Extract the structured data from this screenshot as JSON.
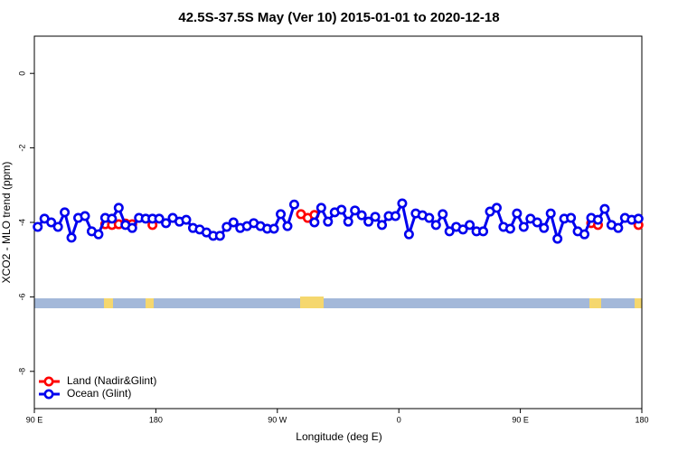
{
  "chart_data": {
    "type": "line",
    "title": "42.5S-37.5S May (Ver 10)   2015-01-01 to 2020-12-18",
    "xlabel": "Longitude (deg E)",
    "ylabel": "XCO2 - MLO trend (ppm)",
    "xlim": [
      90,
      540
    ],
    "ylim": [
      -9,
      1
    ],
    "xticks": [
      {
        "value": 90,
        "label": "90 E"
      },
      180,
      {
        "value": 270,
        "label": "90 W"
      },
      {
        "value": 360,
        "label": "0"
      },
      {
        "value": 450,
        "label": "90 E"
      },
      {
        "value": 540,
        "label": "180"
      }
    ],
    "yticks": [
      0,
      -2,
      -4,
      -6,
      -8
    ],
    "grid": false,
    "legend": "bottom-left",
    "x": [
      92.5,
      97.5,
      102.5,
      107.5,
      112.5,
      117.5,
      122.5,
      127.5,
      132.5,
      137.5,
      142.5,
      147.5,
      152.5,
      157.5,
      162.5,
      167.5,
      172.5,
      177.5,
      182.5,
      187.5,
      192.5,
      197.5,
      202.5,
      207.5,
      212.5,
      217.5,
      222.5,
      227.5,
      232.5,
      237.5,
      242.5,
      247.5,
      252.5,
      257.5,
      262.5,
      267.5,
      272.5,
      277.5,
      282.5,
      287.5,
      292.5,
      297.5,
      302.5,
      307.5,
      312.5,
      317.5,
      322.5,
      327.5,
      332.5,
      337.5,
      342.5,
      347.5,
      352.5,
      357.5,
      362.5,
      367.5,
      372.5,
      377.5,
      382.5,
      387.5,
      392.5,
      397.5,
      402.5,
      407.5,
      412.5,
      417.5,
      422.5,
      427.5,
      432.5,
      437.5,
      442.5,
      447.5,
      452.5,
      457.5,
      462.5,
      467.5,
      472.5,
      477.5,
      482.5,
      487.5,
      492.5,
      497.5,
      502.5,
      507.5,
      512.5,
      517.5,
      522.5,
      527.5,
      532.5,
      537.5
    ],
    "series": [
      {
        "name": "Land (Nadir&Glint)",
        "color": "#ff0000",
        "values": [
          null,
          null,
          null,
          null,
          null,
          null,
          null,
          null,
          null,
          null,
          -4.05,
          -4.07,
          -4.05,
          -4.03,
          -4.05,
          null,
          null,
          -4.07,
          null,
          null,
          null,
          null,
          null,
          null,
          null,
          null,
          null,
          null,
          null,
          null,
          null,
          null,
          null,
          null,
          null,
          null,
          null,
          null,
          null,
          -3.78,
          -3.88,
          -3.8,
          null,
          null,
          null,
          null,
          null,
          null,
          null,
          null,
          null,
          null,
          null,
          null,
          null,
          null,
          null,
          null,
          null,
          null,
          null,
          null,
          null,
          null,
          null,
          null,
          null,
          null,
          null,
          null,
          null,
          null,
          null,
          null,
          null,
          null,
          null,
          null,
          null,
          null,
          null,
          null,
          -4.02,
          -4.07,
          null,
          null,
          null,
          null,
          null,
          -4.07
        ]
      },
      {
        "name": "Ocean (Glint)",
        "color": "#0000ee",
        "values": [
          -4.12,
          -3.9,
          -4.0,
          -4.12,
          -3.73,
          -4.41,
          -3.88,
          -3.83,
          -4.24,
          -4.32,
          -3.88,
          -3.9,
          -3.61,
          -4.07,
          -4.15,
          -3.88,
          -3.9,
          -3.9,
          -3.9,
          -4.02,
          -3.88,
          -3.98,
          -3.93,
          -4.15,
          -4.19,
          -4.27,
          -4.36,
          -4.36,
          -4.12,
          -4.0,
          -4.15,
          -4.1,
          -4.02,
          -4.1,
          -4.17,
          -4.17,
          -3.78,
          -4.1,
          -3.52,
          null,
          null,
          -4.0,
          -3.61,
          -3.98,
          -3.73,
          -3.66,
          -3.98,
          -3.68,
          -3.81,
          -3.98,
          -3.85,
          -4.07,
          -3.83,
          -3.83,
          -3.49,
          -4.32,
          -3.76,
          -3.81,
          -3.88,
          -4.07,
          -3.78,
          -4.24,
          -4.12,
          -4.19,
          -4.07,
          -4.24,
          -4.24,
          -3.71,
          -3.61,
          -4.12,
          -4.17,
          -3.76,
          -4.12,
          -3.9,
          -4.0,
          -4.15,
          -3.76,
          -4.44,
          -3.9,
          -3.88,
          -4.24,
          -4.32,
          -3.88,
          -3.93,
          -3.64,
          -4.07,
          -4.15,
          -3.88,
          -3.93,
          -3.9
        ]
      }
    ]
  }
}
